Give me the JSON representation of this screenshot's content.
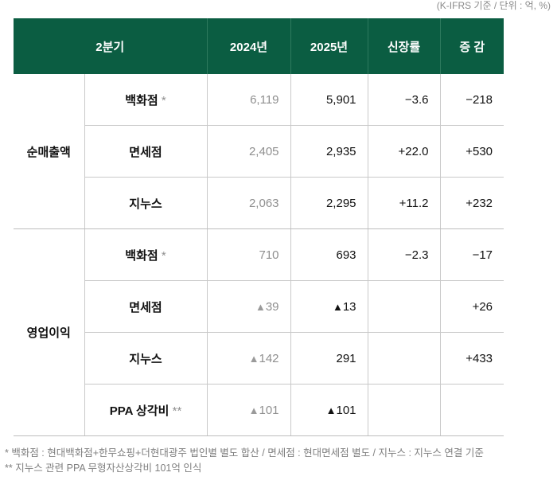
{
  "unit_note": "(K-IFRS 기준 / 단위 : 억, %)",
  "header": {
    "quarter": "2분기",
    "y2024": "2024년",
    "y2025": "2025년",
    "growth": "신장률",
    "change": "증 감"
  },
  "groups": [
    {
      "label": "순매출액",
      "rows": [
        {
          "name": "백화점",
          "mark": "*",
          "y2024": "6,119",
          "y2025": "5,901",
          "growth": "−3.6",
          "change": "−218"
        },
        {
          "name": "면세점",
          "mark": "",
          "y2024": "2,405",
          "y2025": "2,935",
          "growth": "+22.0",
          "change": "+530"
        },
        {
          "name": "지누스",
          "mark": "",
          "y2024": "2,063",
          "y2025": "2,295",
          "growth": "+11.2",
          "change": "+232"
        }
      ]
    },
    {
      "label": "영업이익",
      "rows": [
        {
          "name": "백화점",
          "mark": "*",
          "y2024": "710",
          "y2025": "693",
          "growth": "−2.3",
          "change": "−17"
        },
        {
          "name": "면세점",
          "mark": "",
          "y2024_tri": "▲",
          "y2024": "39",
          "y2025_tri": "▲",
          "y2025": "13",
          "growth": "",
          "change": "+26"
        },
        {
          "name": "지누스",
          "mark": "",
          "y2024_tri": "▲",
          "y2024": "142",
          "y2025": "291",
          "growth": "",
          "change": "+433"
        },
        {
          "name": "PPA 상각비",
          "mark": "**",
          "y2024_tri": "▲",
          "y2024": "101",
          "y2025_tri": "▲",
          "y2025": "101",
          "growth": "",
          "change": ""
        }
      ]
    }
  ],
  "notes": [
    "* 백화점 : 현대백화점+한무쇼핑+더현대광주 법인별 별도 합산 / 면세점 : 현대면세점 별도 / 지누스 : 지누스 연결 기준",
    "** 지누스 관련 PPA 무형자산상각비 101억 인식"
  ]
}
